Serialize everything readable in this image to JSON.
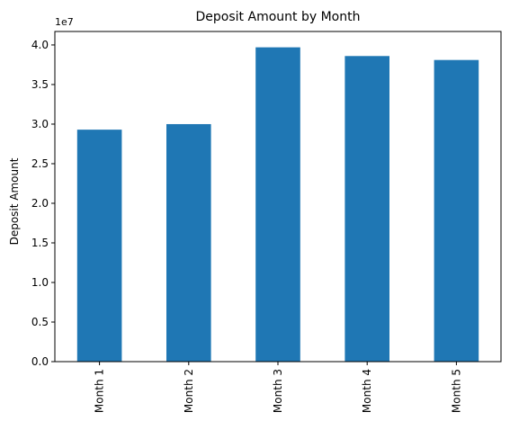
{
  "chart_data": {
    "type": "bar",
    "title": "Deposit Amount by Month",
    "xlabel": "",
    "ylabel": "Deposit Amount",
    "offset_label": "1e7",
    "categories": [
      "Month 1",
      "Month 2",
      "Month 3",
      "Month 4",
      "Month 5"
    ],
    "values": [
      29300000,
      30000000,
      39700000,
      38600000,
      38100000
    ],
    "ylim": [
      0,
      41700000
    ],
    "yticks": [
      0,
      5000000,
      10000000,
      15000000,
      20000000,
      25000000,
      30000000,
      35000000,
      40000000
    ],
    "ytick_labels": [
      "0.0",
      "0.5",
      "1.0",
      "1.5",
      "2.0",
      "2.5",
      "3.0",
      "3.5",
      "4.0"
    ],
    "bar_color": "#1f77b4",
    "grid": false,
    "legend": "none"
  }
}
